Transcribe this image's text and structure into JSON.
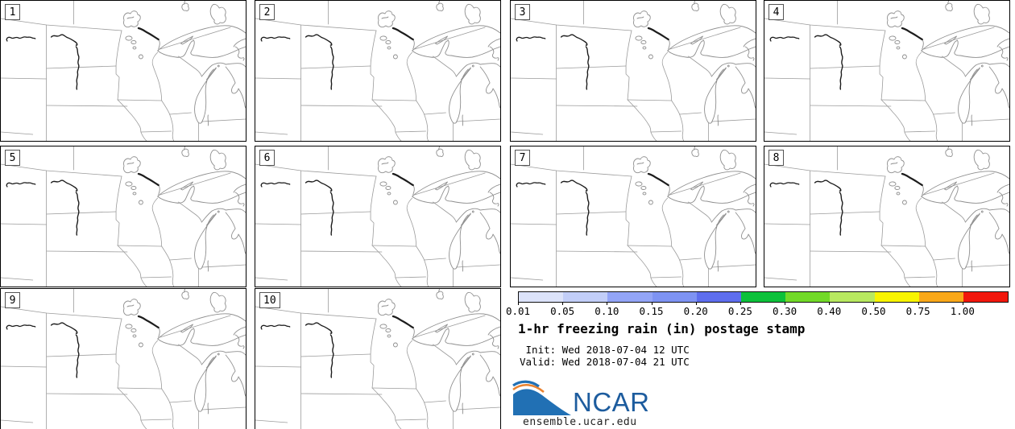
{
  "figure": {
    "title": "1-hr freezing rain (in) postage stamp",
    "init_line": " Init: Wed 2018-07-04 12 UTC",
    "valid_line": "Valid: Wed 2018-07-04 21 UTC"
  },
  "panels": [
    {
      "label": "1"
    },
    {
      "label": "2"
    },
    {
      "label": "3"
    },
    {
      "label": "4"
    },
    {
      "label": "5"
    },
    {
      "label": "6"
    },
    {
      "label": "7"
    },
    {
      "label": "8"
    },
    {
      "label": "9"
    },
    {
      "label": "10"
    }
  ],
  "colorbar": {
    "ticks": [
      "0.01",
      "0.05",
      "0.10",
      "0.15",
      "0.20",
      "0.25",
      "0.30",
      "0.40",
      "0.50",
      "0.75",
      "1.00"
    ],
    "segment_colors": [
      "#dce3fa",
      "#c2cef8",
      "#93a5f7",
      "#7e93f3",
      "#5e6eee",
      "#0cc13a",
      "#72da28",
      "#b8e960",
      "#f8f400",
      "#f9a819",
      "#f1170c"
    ]
  },
  "branding": {
    "logo_text": "NCAR",
    "site": "ensemble.ucar.edu",
    "logo_blue": "#2170b4",
    "logo_text_blue": "#1d5c9e",
    "logo_orange": "#e9822f"
  }
}
